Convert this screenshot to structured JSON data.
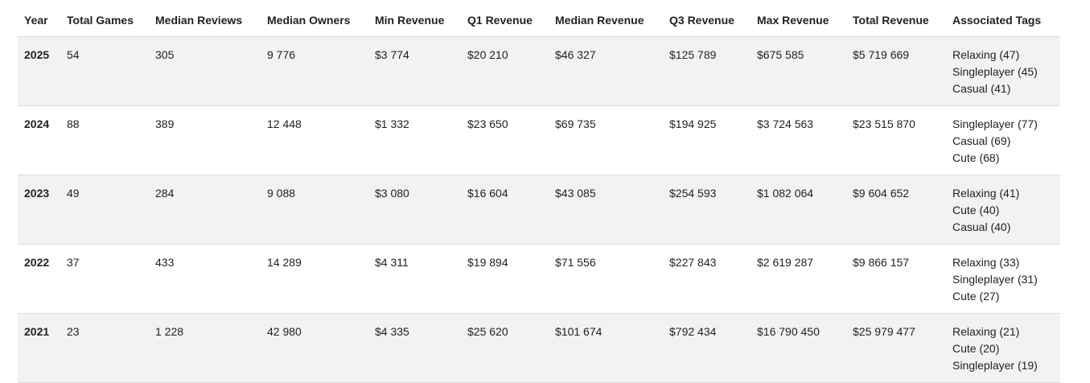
{
  "columns": [
    "Year",
    "Total Games",
    "Median Reviews",
    "Median Owners",
    "Min Revenue",
    "Q1 Revenue",
    "Median Revenue",
    "Q3 Revenue",
    "Max Revenue",
    "Total Revenue",
    "Associated Tags"
  ],
  "rows": [
    {
      "year": "2025",
      "total_games": "54",
      "median_reviews": "305",
      "median_owners": "9 776",
      "min_revenue": "$3 774",
      "q1_revenue": "$20 210",
      "median_revenue": "$46 327",
      "q3_revenue": "$125 789",
      "max_revenue": "$675 585",
      "total_revenue": "$5 719 669",
      "tags": [
        "Relaxing (47)",
        "Singleplayer (45)",
        "Casual (41)"
      ]
    },
    {
      "year": "2024",
      "total_games": "88",
      "median_reviews": "389",
      "median_owners": "12 448",
      "min_revenue": "$1 332",
      "q1_revenue": "$23 650",
      "median_revenue": "$69 735",
      "q3_revenue": "$194 925",
      "max_revenue": "$3 724 563",
      "total_revenue": "$23 515 870",
      "tags": [
        "Singleplayer (77)",
        "Casual (69)",
        "Cute (68)"
      ]
    },
    {
      "year": "2023",
      "total_games": "49",
      "median_reviews": "284",
      "median_owners": "9 088",
      "min_revenue": "$3 080",
      "q1_revenue": "$16 604",
      "median_revenue": "$43 085",
      "q3_revenue": "$254 593",
      "max_revenue": "$1 082 064",
      "total_revenue": "$9 604 652",
      "tags": [
        "Relaxing (41)",
        "Cute (40)",
        "Casual (40)"
      ]
    },
    {
      "year": "2022",
      "total_games": "37",
      "median_reviews": "433",
      "median_owners": "14 289",
      "min_revenue": "$4 311",
      "q1_revenue": "$19 894",
      "median_revenue": "$71 556",
      "q3_revenue": "$227 843",
      "max_revenue": "$2 619 287",
      "total_revenue": "$9 866 157",
      "tags": [
        "Relaxing (33)",
        "Singleplayer (31)",
        "Cute (27)"
      ]
    },
    {
      "year": "2021",
      "total_games": "23",
      "median_reviews": "1 228",
      "median_owners": "42 980",
      "min_revenue": "$4 335",
      "q1_revenue": "$25 620",
      "median_revenue": "$101 674",
      "q3_revenue": "$792 434",
      "max_revenue": "$16 790 450",
      "total_revenue": "$25 979 477",
      "tags": [
        "Relaxing (21)",
        "Cute (20)",
        "Singleplayer (19)"
      ]
    }
  ]
}
